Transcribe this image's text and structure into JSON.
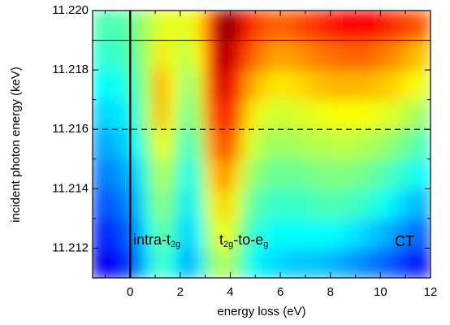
{
  "chart_data": {
    "type": "heatmap",
    "colormap": "jet",
    "zlim": [
      0,
      1
    ],
    "xlabel": "energy loss (eV)",
    "ylabel": "incident photon energy (keV)",
    "xlim": [
      -1.5,
      12
    ],
    "ylim": [
      11.211,
      11.22
    ],
    "xticks": [
      0,
      2,
      4,
      6,
      8,
      10,
      12
    ],
    "xminorticks": [
      -1,
      1,
      3,
      5,
      7,
      9,
      11
    ],
    "yticks": [
      11.212,
      11.214,
      11.216,
      11.218,
      {
        "value": 11.22,
        "label": "11.220"
      }
    ],
    "yminorticks": [
      11.211,
      11.213,
      11.215,
      11.217,
      11.219
    ],
    "x": [
      -1.25,
      -0.75,
      -0.25,
      0.25,
      0.75,
      1.25,
      1.75,
      2.25,
      2.75,
      3.25,
      3.75,
      4.25,
      4.75,
      5.25,
      5.75,
      6.25,
      6.75,
      7.25,
      7.75,
      8.25,
      8.75,
      9.25,
      9.75,
      10.25,
      10.75,
      11.25,
      11.75
    ],
    "y": [
      11.2115,
      11.2125,
      11.2135,
      11.2145,
      11.2155,
      11.2165,
      11.2175,
      11.2185,
      11.2195
    ],
    "z": [
      [
        0.1,
        0.12,
        0.15,
        0.22,
        0.35,
        0.45,
        0.38,
        0.28,
        0.35,
        0.5,
        0.56,
        0.5,
        0.4,
        0.36,
        0.34,
        0.33,
        0.32,
        0.32,
        0.31,
        0.3,
        0.28,
        0.26,
        0.24,
        0.22,
        0.19,
        0.16,
        0.14
      ],
      [
        0.15,
        0.17,
        0.2,
        0.26,
        0.38,
        0.48,
        0.42,
        0.32,
        0.38,
        0.55,
        0.62,
        0.55,
        0.44,
        0.4,
        0.38,
        0.38,
        0.38,
        0.38,
        0.38,
        0.37,
        0.36,
        0.34,
        0.32,
        0.3,
        0.27,
        0.24,
        0.22
      ],
      [
        0.2,
        0.22,
        0.24,
        0.3,
        0.42,
        0.52,
        0.46,
        0.35,
        0.42,
        0.6,
        0.68,
        0.6,
        0.48,
        0.45,
        0.43,
        0.43,
        0.43,
        0.44,
        0.45,
        0.45,
        0.44,
        0.43,
        0.41,
        0.38,
        0.35,
        0.32,
        0.3
      ],
      [
        0.24,
        0.26,
        0.28,
        0.33,
        0.45,
        0.56,
        0.5,
        0.38,
        0.45,
        0.66,
        0.76,
        0.66,
        0.54,
        0.5,
        0.48,
        0.48,
        0.48,
        0.49,
        0.5,
        0.5,
        0.5,
        0.49,
        0.47,
        0.45,
        0.42,
        0.4,
        0.37
      ],
      [
        0.28,
        0.3,
        0.32,
        0.38,
        0.5,
        0.62,
        0.55,
        0.42,
        0.5,
        0.72,
        0.84,
        0.74,
        0.6,
        0.55,
        0.53,
        0.53,
        0.54,
        0.55,
        0.55,
        0.56,
        0.56,
        0.55,
        0.54,
        0.52,
        0.5,
        0.47,
        0.44
      ],
      [
        0.33,
        0.34,
        0.36,
        0.42,
        0.55,
        0.7,
        0.6,
        0.47,
        0.55,
        0.78,
        0.88,
        0.8,
        0.66,
        0.6,
        0.58,
        0.58,
        0.59,
        0.6,
        0.61,
        0.62,
        0.62,
        0.62,
        0.61,
        0.6,
        0.58,
        0.55,
        0.52
      ],
      [
        0.38,
        0.38,
        0.4,
        0.45,
        0.55,
        0.72,
        0.62,
        0.5,
        0.58,
        0.82,
        0.92,
        0.85,
        0.72,
        0.68,
        0.65,
        0.65,
        0.66,
        0.68,
        0.69,
        0.7,
        0.7,
        0.7,
        0.69,
        0.68,
        0.66,
        0.63,
        0.6
      ],
      [
        0.42,
        0.42,
        0.44,
        0.48,
        0.55,
        0.65,
        0.6,
        0.55,
        0.62,
        0.85,
        0.97,
        0.9,
        0.8,
        0.75,
        0.72,
        0.72,
        0.73,
        0.75,
        0.76,
        0.77,
        0.78,
        0.78,
        0.77,
        0.75,
        0.73,
        0.7,
        0.68
      ],
      [
        0.45,
        0.45,
        0.45,
        0.5,
        0.55,
        0.6,
        0.6,
        0.6,
        0.65,
        0.85,
        1.0,
        0.95,
        0.85,
        0.8,
        0.78,
        0.78,
        0.8,
        0.82,
        0.84,
        0.86,
        0.88,
        0.88,
        0.87,
        0.85,
        0.82,
        0.8,
        0.78
      ]
    ],
    "reference_lines": [
      {
        "axis": "x",
        "value": 0,
        "style": "solid"
      },
      {
        "axis": "y",
        "value": 11.219,
        "style": "solid"
      },
      {
        "axis": "y",
        "value": 11.216,
        "style": "dashed"
      }
    ],
    "annotations": [
      {
        "parts": [
          {
            "text": "intra-t"
          },
          {
            "sub": "2g"
          }
        ]
      },
      {
        "parts": [
          {
            "text": "t"
          },
          {
            "sub": "2g"
          },
          {
            "text": "-to-e"
          },
          {
            "sub": "g"
          }
        ]
      },
      {
        "parts": [
          {
            "text": "CT"
          }
        ]
      }
    ]
  }
}
